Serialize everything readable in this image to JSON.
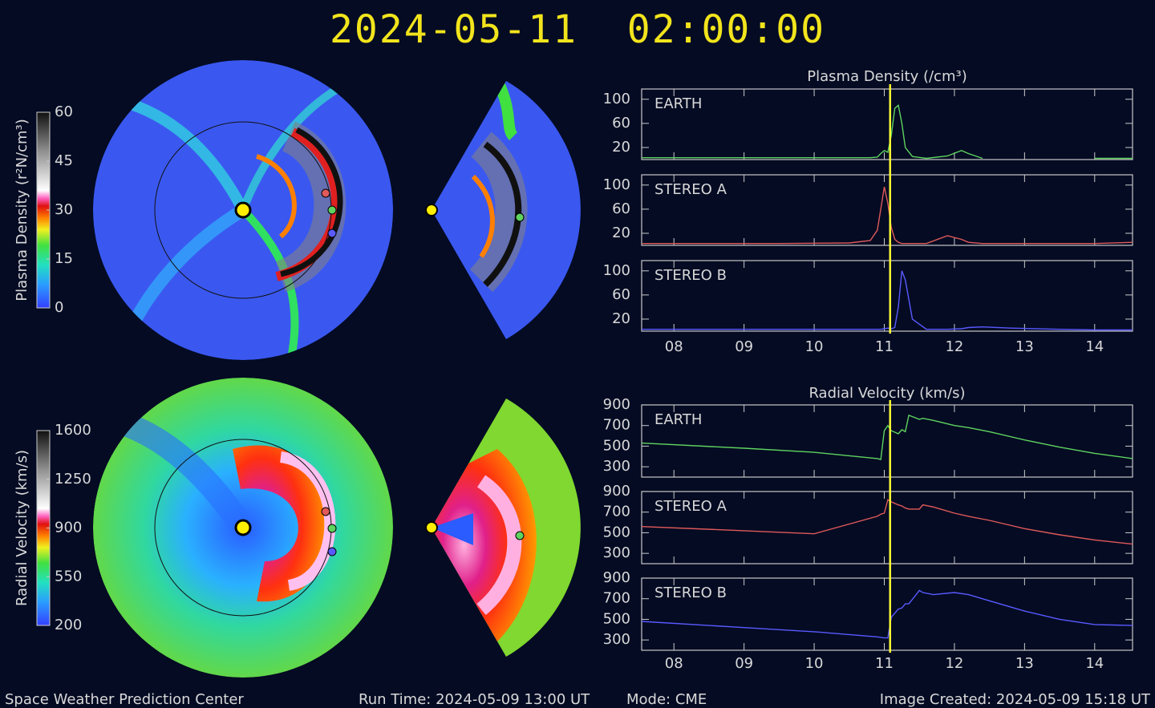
{
  "title": "2024-05-11  02:00:00",
  "footer": {
    "left": "Space Weather Prediction Center",
    "run": "Run Time: 2024-05-09 13:00 UT",
    "mode": "Mode: CME",
    "right": "Image Created: 2024-05-09 15:18 UT"
  },
  "colorbars": [
    {
      "label": "Plasma Density (r²N/cm³)",
      "lim": [
        0,
        60
      ],
      "ticks": [
        0,
        15,
        30,
        45,
        60
      ]
    },
    {
      "label": "Radial Velocity (km/s)",
      "lim": [
        200,
        1600
      ],
      "ticks": [
        200,
        550,
        900,
        1250,
        1600
      ]
    }
  ],
  "chart_data": [
    {
      "type": "line",
      "title": "Plasma Density (/cm³)",
      "xlim": [
        7.54,
        14.54
      ],
      "xticks": [
        {
          "value": 8,
          "label": "08"
        },
        {
          "value": 9,
          "label": "09"
        },
        {
          "value": 10,
          "label": "10"
        },
        {
          "value": 11,
          "label": "11"
        },
        {
          "value": 12,
          "label": "12"
        },
        {
          "value": 13,
          "label": "13"
        },
        {
          "value": 14,
          "label": "14"
        }
      ],
      "ylim": [
        0,
        117
      ],
      "yticks": [
        20,
        60,
        100
      ],
      "time_marker": 11.083,
      "marker_color": "#ffff33",
      "x": [
        7.54,
        8.5,
        9.5,
        10.5,
        10.8,
        10.9,
        10.95,
        11.0,
        11.05,
        11.1,
        11.15,
        11.2,
        11.25,
        11.3,
        11.4,
        11.6,
        11.9,
        12.1,
        12.2,
        12.4,
        12.8,
        13.5,
        14.0,
        14.54
      ],
      "series": [
        {
          "name": "EARTH",
          "color": "#5fd35f",
          "values": [
            3,
            3,
            3,
            3,
            3,
            4,
            10,
            15,
            12,
            40,
            85,
            90,
            60,
            20,
            5,
            2,
            6,
            15,
            10,
            2,
            null,
            null,
            2,
            2
          ]
        },
        {
          "name": "STEREO A",
          "color": "#e05a5a",
          "values": [
            3,
            3,
            3,
            4,
            8,
            25,
            60,
            97,
            70,
            30,
            10,
            5,
            3,
            3,
            3,
            3,
            16,
            10,
            5,
            3,
            3,
            3,
            3,
            5
          ]
        },
        {
          "name": "STEREO B",
          "color": "#5a5aff",
          "values": [
            3,
            3,
            3,
            3,
            3,
            3,
            3,
            4,
            5,
            4,
            6,
            40,
            100,
            85,
            20,
            3,
            3,
            4,
            6,
            7,
            5,
            3,
            2,
            2
          ]
        }
      ]
    },
    {
      "type": "line",
      "title": "Radial Velocity (km/s)",
      "xlim": [
        7.54,
        14.54
      ],
      "xticks": [
        {
          "value": 8,
          "label": "08"
        },
        {
          "value": 9,
          "label": "09"
        },
        {
          "value": 10,
          "label": "10"
        },
        {
          "value": 11,
          "label": "11"
        },
        {
          "value": 12,
          "label": "12"
        },
        {
          "value": 13,
          "label": "13"
        },
        {
          "value": 14,
          "label": "14"
        }
      ],
      "ylim": [
        200,
        900
      ],
      "yticks": [
        300,
        500,
        700,
        900
      ],
      "time_marker": 11.083,
      "marker_color": "#ffff33",
      "x": [
        7.54,
        9,
        10,
        10.9,
        10.95,
        11.0,
        11.05,
        11.1,
        11.2,
        11.25,
        11.3,
        11.35,
        11.5,
        11.55,
        11.7,
        12.0,
        12.2,
        12.5,
        13.0,
        13.5,
        14.0,
        14.54
      ],
      "series": [
        {
          "name": "EARTH",
          "color": "#5fd35f",
          "values": [
            530,
            480,
            440,
            380,
            370,
            650,
            700,
            650,
            620,
            660,
            640,
            800,
            760,
            770,
            750,
            700,
            680,
            640,
            560,
            490,
            430,
            380
          ]
        },
        {
          "name": "STEREO A",
          "color": "#e05a5a",
          "values": [
            560,
            520,
            490,
            660,
            680,
            690,
            820,
            800,
            770,
            760,
            740,
            730,
            730,
            770,
            750,
            690,
            660,
            620,
            540,
            480,
            430,
            390
          ]
        },
        {
          "name": "STEREO B",
          "color": "#5a5aff",
          "values": [
            480,
            420,
            380,
            330,
            325,
            320,
            320,
            520,
            600,
            610,
            650,
            650,
            780,
            760,
            740,
            760,
            740,
            680,
            580,
            500,
            450,
            440
          ]
        }
      ]
    }
  ]
}
